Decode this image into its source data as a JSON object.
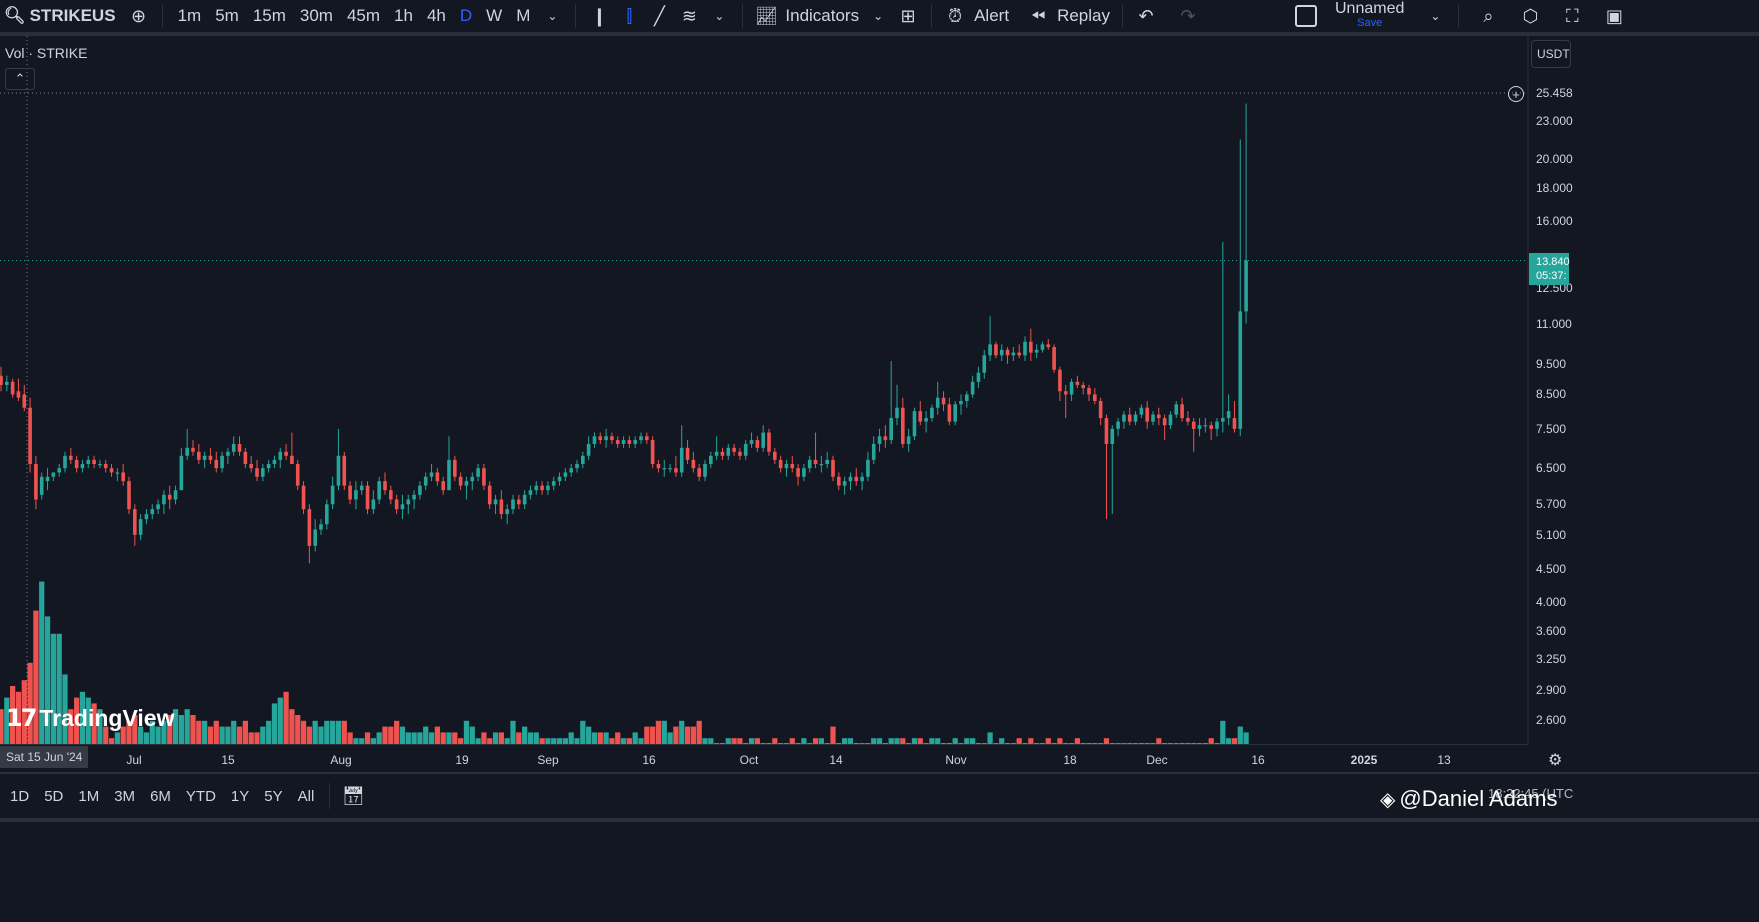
{
  "toolbar": {
    "symbol": "STRIKEUS",
    "intervals": [
      "1m",
      "5m",
      "15m",
      "30m",
      "45m",
      "1h",
      "4h",
      "D",
      "W",
      "M"
    ],
    "active_interval": "D",
    "indicators_label": "Indicators",
    "alert_label": "Alert",
    "replay_label": "Replay",
    "layout_name": "Unnamed",
    "layout_save": "Save"
  },
  "legend": {
    "label": "Vol · STRIKE"
  },
  "price_axis": {
    "currency": "USDT",
    "labels": [
      "25.458",
      "23.000",
      "20.000",
      "18.000",
      "16.000",
      "12.500",
      "11.000",
      "9.500",
      "8.500",
      "7.500",
      "6.500",
      "5.700",
      "5.100",
      "4.500",
      "4.000",
      "3.600",
      "3.250",
      "2.900",
      "2.600"
    ],
    "last_price": "13.840",
    "countdown": "05:37:"
  },
  "time_axis": {
    "crosshair_label": "Sat 15 Jun '24",
    "labels": [
      "Jul",
      "15",
      "Aug",
      "19",
      "Sep",
      "16",
      "Oct",
      "14",
      "Nov",
      "18",
      "Dec",
      "16",
      "2025",
      "13"
    ]
  },
  "bottom_bar": {
    "ranges": [
      "1D",
      "5D",
      "1M",
      "3M",
      "6M",
      "YTD",
      "1Y",
      "5Y",
      "All"
    ],
    "clock": "18:22:45 (UTC"
  },
  "watermark": {
    "brand": "TradingView"
  },
  "credit": {
    "text": "@Daniel Adams"
  },
  "colors": {
    "up": "#26a69a",
    "down": "#ef5350",
    "background": "#131722",
    "accent": "#2962ff"
  },
  "chart_data": {
    "type": "candlestick",
    "start_date": "2024-06-12",
    "interval": "1D",
    "price_scale": "log",
    "ylim": [
      4.2,
      26
    ],
    "ohlcv": [
      [
        9.1,
        9.4,
        8.6,
        8.8,
        3.1
      ],
      [
        8.8,
        9.1,
        8.6,
        8.9,
        3.3
      ],
      [
        8.9,
        9.0,
        8.4,
        8.5,
        3.5
      ],
      [
        8.6,
        9.0,
        8.3,
        8.4,
        3.4
      ],
      [
        8.5,
        8.8,
        8.0,
        8.1,
        3.6
      ],
      [
        8.1,
        8.4,
        6.4,
        6.6,
        3.9
      ],
      [
        6.6,
        6.8,
        5.6,
        5.8,
        4.8
      ],
      [
        5.9,
        6.4,
        5.8,
        6.3,
        5.3
      ],
      [
        6.2,
        6.5,
        6.0,
        6.3,
        4.7
      ],
      [
        6.3,
        6.4,
        6.2,
        6.4,
        4.4
      ],
      [
        6.4,
        6.6,
        6.3,
        6.5,
        4.4
      ],
      [
        6.5,
        6.9,
        6.4,
        6.8,
        3.7
      ],
      [
        6.8,
        7.0,
        6.6,
        6.7,
        3.1
      ],
      [
        6.7,
        6.8,
        6.4,
        6.5,
        3.3
      ],
      [
        6.5,
        6.7,
        6.4,
        6.6,
        3.4
      ],
      [
        6.6,
        6.8,
        6.5,
        6.7,
        3.3
      ],
      [
        6.7,
        6.8,
        6.5,
        6.6,
        3.2
      ],
      [
        6.6,
        6.7,
        6.5,
        6.6,
        3.1
      ],
      [
        6.6,
        6.7,
        6.4,
        6.5,
        2.8
      ],
      [
        6.5,
        6.6,
        6.3,
        6.4,
        2.6
      ],
      [
        6.4,
        6.5,
        6.2,
        6.4,
        2.7
      ],
      [
        6.4,
        6.6,
        6.1,
        6.2,
        2.8
      ],
      [
        6.2,
        6.3,
        5.5,
        5.6,
        2.9
      ],
      [
        5.6,
        5.7,
        4.9,
        5.1,
        3.0
      ],
      [
        5.1,
        5.5,
        5.0,
        5.4,
        2.8
      ],
      [
        5.4,
        5.6,
        5.3,
        5.5,
        2.7
      ],
      [
        5.5,
        5.7,
        5.4,
        5.6,
        2.9
      ],
      [
        5.6,
        5.8,
        5.5,
        5.7,
        2.8
      ],
      [
        5.7,
        6.0,
        5.5,
        5.9,
        2.9
      ],
      [
        5.9,
        6.1,
        5.6,
        5.8,
        3.0
      ],
      [
        5.8,
        6.1,
        5.7,
        6.0,
        3.1
      ],
      [
        6.0,
        7.0,
        6.0,
        6.8,
        3.0
      ],
      [
        6.8,
        7.5,
        6.7,
        7.0,
        3.1
      ],
      [
        7.0,
        7.2,
        6.8,
        6.9,
        3.0
      ],
      [
        6.9,
        7.1,
        6.6,
        6.7,
        2.9
      ],
      [
        6.7,
        6.9,
        6.5,
        6.8,
        2.9
      ],
      [
        6.8,
        7.0,
        6.6,
        6.7,
        2.8
      ],
      [
        6.7,
        6.9,
        6.4,
        6.5,
        2.9
      ],
      [
        6.5,
        6.9,
        6.4,
        6.8,
        2.8
      ],
      [
        6.8,
        7.0,
        6.6,
        6.9,
        2.8
      ],
      [
        6.9,
        7.3,
        6.8,
        7.1,
        2.9
      ],
      [
        7.1,
        7.3,
        6.8,
        6.9,
        2.8
      ],
      [
        6.9,
        7.0,
        6.5,
        6.6,
        2.9
      ],
      [
        6.6,
        6.8,
        6.4,
        6.5,
        2.7
      ],
      [
        6.5,
        6.7,
        6.2,
        6.3,
        2.7
      ],
      [
        6.3,
        6.6,
        6.2,
        6.5,
        2.8
      ],
      [
        6.5,
        6.7,
        6.4,
        6.6,
        2.9
      ],
      [
        6.6,
        6.8,
        6.5,
        6.7,
        3.2
      ],
      [
        6.7,
        7.0,
        6.5,
        6.9,
        3.3
      ],
      [
        6.9,
        7.1,
        6.7,
        6.8,
        3.4
      ],
      [
        6.8,
        7.4,
        6.6,
        6.6,
        3.1
      ],
      [
        6.6,
        6.7,
        6.0,
        6.1,
        3.0
      ],
      [
        6.1,
        6.2,
        5.5,
        5.6,
        2.9
      ],
      [
        5.6,
        5.7,
        4.6,
        4.9,
        2.8
      ],
      [
        4.9,
        5.4,
        4.8,
        5.2,
        2.9
      ],
      [
        5.2,
        5.4,
        5.1,
        5.3,
        2.8
      ],
      [
        5.3,
        5.8,
        5.2,
        5.7,
        2.9
      ],
      [
        5.7,
        6.3,
        5.6,
        6.1,
        2.9
      ],
      [
        6.1,
        7.5,
        6.0,
        6.8,
        2.9
      ],
      [
        6.8,
        6.9,
        6.0,
        6.1,
        2.9
      ],
      [
        6.1,
        6.2,
        5.7,
        5.8,
        2.7
      ],
      [
        5.8,
        6.2,
        5.6,
        6.0,
        2.6
      ],
      [
        6.0,
        6.2,
        5.9,
        6.1,
        2.6
      ],
      [
        6.1,
        6.2,
        5.5,
        5.6,
        2.7
      ],
      [
        5.6,
        6.0,
        5.5,
        5.8,
        2.6
      ],
      [
        5.8,
        6.3,
        5.7,
        6.2,
        2.7
      ],
      [
        6.2,
        6.4,
        5.9,
        6.0,
        2.8
      ],
      [
        6.0,
        6.1,
        5.7,
        5.8,
        2.8
      ],
      [
        5.8,
        5.9,
        5.5,
        5.6,
        2.9
      ],
      [
        5.6,
        5.9,
        5.4,
        5.7,
        2.8
      ],
      [
        5.7,
        5.9,
        5.5,
        5.8,
        2.7
      ],
      [
        5.8,
        6.0,
        5.6,
        5.9,
        2.7
      ],
      [
        5.9,
        6.2,
        5.8,
        6.1,
        2.7
      ],
      [
        6.1,
        6.4,
        6.0,
        6.3,
        2.8
      ],
      [
        6.3,
        6.6,
        6.2,
        6.4,
        2.7
      ],
      [
        6.4,
        6.5,
        6.1,
        6.2,
        2.8
      ],
      [
        6.2,
        6.3,
        5.9,
        6.0,
        2.7
      ],
      [
        6.0,
        7.3,
        6.0,
        6.7,
        2.7
      ],
      [
        6.7,
        6.8,
        6.2,
        6.3,
        2.7
      ],
      [
        6.3,
        6.4,
        6.0,
        6.1,
        2.6
      ],
      [
        6.1,
        6.3,
        5.8,
        6.2,
        2.9
      ],
      [
        6.2,
        6.4,
        6.0,
        6.3,
        2.8
      ],
      [
        6.3,
        6.6,
        6.2,
        6.5,
        2.6
      ],
      [
        6.5,
        6.6,
        6.0,
        6.1,
        2.7
      ],
      [
        6.1,
        6.2,
        5.6,
        5.7,
        2.6
      ],
      [
        5.7,
        5.9,
        5.5,
        5.8,
        2.7
      ],
      [
        5.8,
        6.0,
        5.4,
        5.5,
        2.7
      ],
      [
        5.5,
        5.7,
        5.3,
        5.6,
        2.6
      ],
      [
        5.6,
        5.9,
        5.5,
        5.8,
        2.9
      ],
      [
        5.8,
        5.9,
        5.6,
        5.7,
        2.7
      ],
      [
        5.7,
        6.0,
        5.6,
        5.9,
        2.8
      ],
      [
        5.9,
        6.1,
        5.8,
        6.0,
        2.7
      ],
      [
        6.0,
        6.2,
        5.9,
        6.1,
        2.7
      ],
      [
        6.1,
        6.2,
        5.9,
        6.0,
        2.6
      ],
      [
        6.0,
        6.2,
        5.9,
        6.1,
        2.6
      ],
      [
        6.1,
        6.3,
        6.0,
        6.2,
        2.6
      ],
      [
        6.2,
        6.4,
        6.1,
        6.3,
        2.6
      ],
      [
        6.3,
        6.5,
        6.2,
        6.4,
        2.6
      ],
      [
        6.4,
        6.6,
        6.3,
        6.5,
        2.7
      ],
      [
        6.5,
        6.7,
        6.4,
        6.6,
        2.6
      ],
      [
        6.6,
        6.9,
        6.5,
        6.8,
        2.9
      ],
      [
        6.8,
        7.3,
        6.7,
        7.1,
        2.8
      ],
      [
        7.1,
        7.4,
        7.0,
        7.3,
        2.7
      ],
      [
        7.3,
        7.4,
        7.1,
        7.2,
        2.7
      ],
      [
        7.2,
        7.5,
        7.0,
        7.3,
        2.7
      ],
      [
        7.3,
        7.4,
        7.1,
        7.2,
        2.6
      ],
      [
        7.2,
        7.3,
        7.0,
        7.1,
        2.7
      ],
      [
        7.1,
        7.3,
        7.0,
        7.2,
        2.6
      ],
      [
        7.2,
        7.3,
        7.0,
        7.1,
        2.6
      ],
      [
        7.1,
        7.3,
        7.0,
        7.2,
        2.7
      ],
      [
        7.2,
        7.4,
        7.1,
        7.3,
        2.6
      ],
      [
        7.3,
        7.4,
        7.1,
        7.2,
        2.8
      ],
      [
        7.2,
        7.3,
        6.5,
        6.6,
        2.8
      ],
      [
        6.6,
        6.7,
        6.4,
        6.5,
        2.9
      ],
      [
        6.5,
        6.7,
        6.3,
        6.5,
        2.9
      ],
      [
        6.5,
        6.6,
        6.4,
        6.5,
        2.7
      ],
      [
        6.5,
        6.8,
        6.3,
        6.4,
        2.8
      ],
      [
        6.4,
        7.6,
        6.3,
        7.0,
        2.9
      ],
      [
        7.0,
        7.2,
        6.6,
        6.7,
        2.8
      ],
      [
        6.7,
        6.9,
        6.4,
        6.5,
        2.8
      ],
      [
        6.5,
        6.6,
        6.2,
        6.3,
        2.9
      ],
      [
        6.3,
        6.7,
        6.2,
        6.6,
        2.6
      ],
      [
        6.6,
        6.9,
        6.5,
        6.8,
        2.6
      ],
      [
        6.8,
        7.3,
        6.7,
        6.9,
        2.5
      ],
      [
        6.9,
        7.0,
        6.7,
        6.8,
        2.5
      ],
      [
        6.8,
        7.1,
        6.7,
        7.0,
        2.6
      ],
      [
        7.0,
        7.1,
        6.8,
        6.9,
        2.6
      ],
      [
        6.9,
        7.0,
        6.7,
        6.8,
        2.6
      ],
      [
        6.8,
        7.2,
        6.7,
        7.1,
        2.5
      ],
      [
        7.1,
        7.4,
        7.0,
        7.2,
        2.6
      ],
      [
        7.2,
        7.3,
        6.9,
        7.0,
        2.6
      ],
      [
        7.0,
        7.6,
        6.9,
        7.4,
        2.5
      ],
      [
        7.4,
        7.5,
        6.8,
        6.9,
        2.5
      ],
      [
        6.9,
        7.0,
        6.6,
        6.7,
        2.6
      ],
      [
        6.7,
        6.8,
        6.4,
        6.5,
        2.5
      ],
      [
        6.5,
        6.7,
        6.3,
        6.6,
        2.5
      ],
      [
        6.6,
        6.8,
        6.4,
        6.5,
        2.6
      ],
      [
        6.5,
        6.6,
        6.1,
        6.3,
        2.5
      ],
      [
        6.3,
        6.6,
        6.2,
        6.5,
        2.6
      ],
      [
        6.5,
        6.8,
        6.4,
        6.7,
        2.5
      ],
      [
        6.7,
        7.4,
        6.5,
        6.6,
        2.6
      ],
      [
        6.6,
        6.8,
        6.4,
        6.6,
        2.6
      ],
      [
        6.6,
        6.9,
        6.5,
        6.7,
        2.5
      ],
      [
        6.7,
        6.8,
        6.2,
        6.3,
        2.8
      ],
      [
        6.3,
        6.4,
        6.0,
        6.1,
        2.5
      ],
      [
        6.1,
        6.3,
        5.9,
        6.2,
        2.6
      ],
      [
        6.2,
        6.4,
        6.0,
        6.3,
        2.6
      ],
      [
        6.3,
        6.5,
        6.1,
        6.2,
        2.5
      ],
      [
        6.2,
        6.4,
        6.0,
        6.3,
        2.5
      ],
      [
        6.3,
        6.9,
        6.2,
        6.7,
        2.5
      ],
      [
        6.7,
        7.3,
        6.6,
        7.1,
        2.6
      ],
      [
        7.1,
        7.5,
        6.9,
        7.3,
        2.6
      ],
      [
        7.3,
        7.6,
        7.0,
        7.2,
        2.5
      ],
      [
        7.2,
        9.6,
        7.1,
        7.8,
        2.6
      ],
      [
        7.8,
        8.8,
        7.6,
        8.1,
        2.6
      ],
      [
        8.1,
        8.4,
        7.0,
        7.1,
        2.6
      ],
      [
        7.1,
        7.5,
        6.9,
        7.3,
        2.5
      ],
      [
        7.3,
        8.1,
        7.2,
        8.0,
        2.6
      ],
      [
        8.0,
        8.3,
        7.6,
        7.7,
        2.6
      ],
      [
        7.7,
        8.0,
        7.4,
        7.8,
        2.5
      ],
      [
        7.8,
        8.2,
        7.7,
        8.1,
        2.6
      ],
      [
        8.1,
        8.9,
        7.9,
        8.4,
        2.6
      ],
      [
        8.4,
        8.6,
        8.0,
        8.2,
        2.5
      ],
      [
        8.2,
        8.4,
        7.6,
        7.7,
        2.5
      ],
      [
        7.7,
        8.3,
        7.6,
        8.2,
        2.6
      ],
      [
        8.2,
        8.5,
        7.9,
        8.3,
        2.5
      ],
      [
        8.3,
        8.6,
        8.1,
        8.5,
        2.6
      ],
      [
        8.5,
        9.1,
        8.4,
        8.9,
        2.6
      ],
      [
        8.9,
        9.4,
        8.7,
        9.2,
        2.5
      ],
      [
        9.2,
        10.0,
        9.0,
        9.8,
        2.5
      ],
      [
        9.8,
        11.3,
        9.6,
        10.2,
        2.7
      ],
      [
        10.2,
        10.3,
        9.7,
        9.8,
        2.5
      ],
      [
        9.8,
        10.2,
        9.6,
        10.0,
        2.6
      ],
      [
        10.0,
        10.1,
        9.5,
        9.8,
        2.5
      ],
      [
        9.8,
        10.1,
        9.6,
        9.9,
        2.5
      ],
      [
        9.9,
        10.2,
        9.7,
        9.8,
        2.6
      ],
      [
        9.8,
        10.5,
        9.6,
        10.3,
        2.5
      ],
      [
        10.3,
        10.8,
        9.6,
        9.9,
        2.6
      ],
      [
        9.9,
        10.2,
        9.7,
        10.0,
        2.5
      ],
      [
        10.0,
        10.3,
        9.9,
        10.2,
        2.5
      ],
      [
        10.2,
        10.4,
        10.0,
        10.1,
        2.6
      ],
      [
        10.1,
        10.2,
        9.2,
        9.3,
        2.5
      ],
      [
        9.3,
        9.4,
        8.3,
        8.6,
        2.6
      ],
      [
        8.6,
        8.8,
        7.8,
        8.5,
        2.5
      ],
      [
        8.5,
        9.0,
        8.3,
        8.9,
        2.5
      ],
      [
        8.9,
        9.1,
        8.7,
        8.8,
        2.6
      ],
      [
        8.8,
        8.9,
        8.5,
        8.7,
        2.5
      ],
      [
        8.7,
        8.8,
        8.3,
        8.5,
        2.5
      ],
      [
        8.5,
        8.7,
        8.2,
        8.3,
        2.5
      ],
      [
        8.3,
        8.4,
        7.6,
        7.8,
        2.5
      ],
      [
        7.8,
        7.9,
        5.4,
        7.1,
        2.6
      ],
      [
        7.1,
        7.6,
        5.5,
        7.5,
        2.5
      ],
      [
        7.5,
        7.8,
        7.3,
        7.7,
        2.5
      ],
      [
        7.7,
        8.0,
        7.5,
        7.9,
        2.5
      ],
      [
        7.9,
        8.1,
        7.6,
        7.7,
        2.5
      ],
      [
        7.7,
        8.0,
        7.6,
        7.9,
        2.5
      ],
      [
        7.9,
        8.2,
        7.8,
        8.1,
        2.5
      ],
      [
        8.1,
        8.3,
        7.5,
        7.7,
        2.5
      ],
      [
        7.7,
        8.0,
        7.6,
        7.9,
        2.5
      ],
      [
        7.9,
        8.1,
        7.6,
        7.8,
        2.6
      ],
      [
        7.8,
        7.9,
        7.2,
        7.6,
        2.5
      ],
      [
        7.6,
        8.0,
        7.5,
        7.9,
        2.5
      ],
      [
        7.9,
        8.3,
        7.8,
        8.2,
        2.5
      ],
      [
        8.2,
        8.4,
        7.7,
        7.8,
        2.5
      ],
      [
        7.8,
        8.0,
        7.6,
        7.7,
        2.5
      ],
      [
        7.7,
        7.8,
        6.9,
        7.5,
        2.5
      ],
      [
        7.5,
        7.8,
        7.3,
        7.6,
        2.5
      ],
      [
        7.6,
        7.8,
        7.4,
        7.6,
        2.5
      ],
      [
        7.6,
        7.7,
        7.2,
        7.5,
        2.6
      ],
      [
        7.5,
        7.8,
        7.3,
        7.7,
        2.5
      ],
      [
        7.7,
        14.8,
        7.4,
        7.8,
        2.9
      ],
      [
        7.8,
        8.5,
        7.6,
        8.0,
        2.6
      ],
      [
        7.8,
        8.3,
        7.4,
        7.5,
        2.6
      ],
      [
        7.5,
        21.5,
        7.3,
        11.5,
        2.8
      ],
      [
        11.5,
        24.5,
        11.0,
        13.84,
        2.7
      ]
    ]
  }
}
